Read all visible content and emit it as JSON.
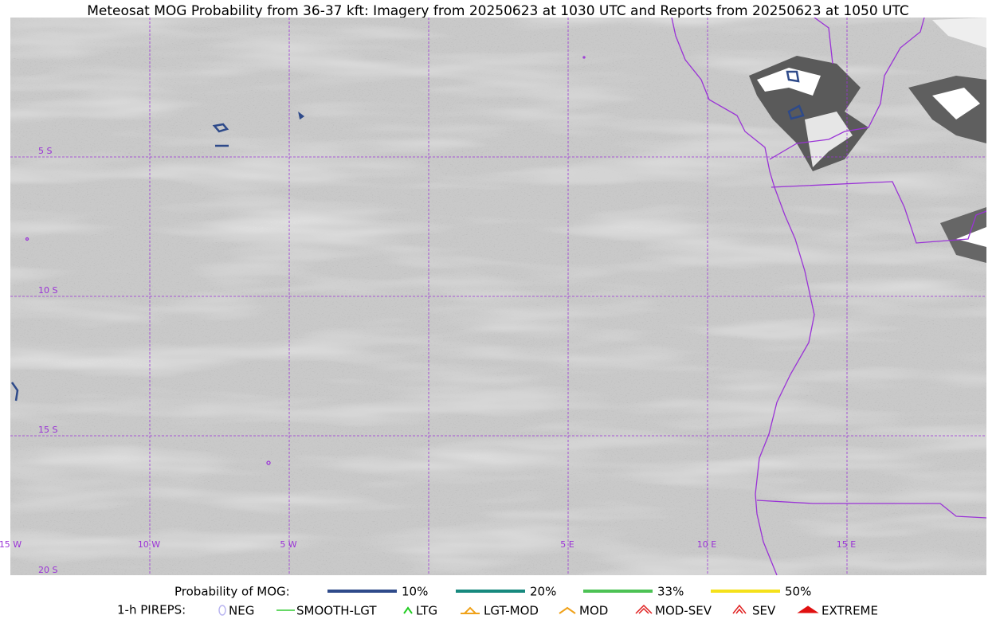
{
  "header": {
    "title": "Meteosat MOG Probability from 36-37 kft: Imagery from 20250623 at 1030 UTC and Reports from 20250623 at 1050 UTC"
  },
  "map": {
    "lat_labels": [
      "5 S",
      "10 S",
      "15 S",
      "20 S"
    ],
    "lon_labels": [
      "15 W",
      "10 W",
      "5 W",
      "5 E",
      "10 E",
      "15 E"
    ]
  },
  "legend": {
    "probability_title": "Probability of MOG:",
    "probability_items": [
      {
        "label": "10%",
        "color": "#2e4a8a"
      },
      {
        "label": "20%",
        "color": "#17897e"
      },
      {
        "label": "33%",
        "color": "#4cc254"
      },
      {
        "label": "50%",
        "color": "#f5e11a"
      }
    ],
    "pireps_title": "1-h PIREPS:",
    "pireps_items": [
      {
        "label": "NEG",
        "color": "#b9b5f0"
      },
      {
        "label": "SMOOTH-LGT",
        "color": "#33cc33"
      },
      {
        "label": "LTG",
        "color": "#22cc22"
      },
      {
        "label": "LGT-MOD",
        "color": "#f0a21a"
      },
      {
        "label": "MOD",
        "color": "#f0a21a"
      },
      {
        "label": "MOD-SEV",
        "color": "#e02020"
      },
      {
        "label": "SEV",
        "color": "#e02020"
      },
      {
        "label": "EXTREME",
        "color": "#e01010"
      }
    ]
  }
}
